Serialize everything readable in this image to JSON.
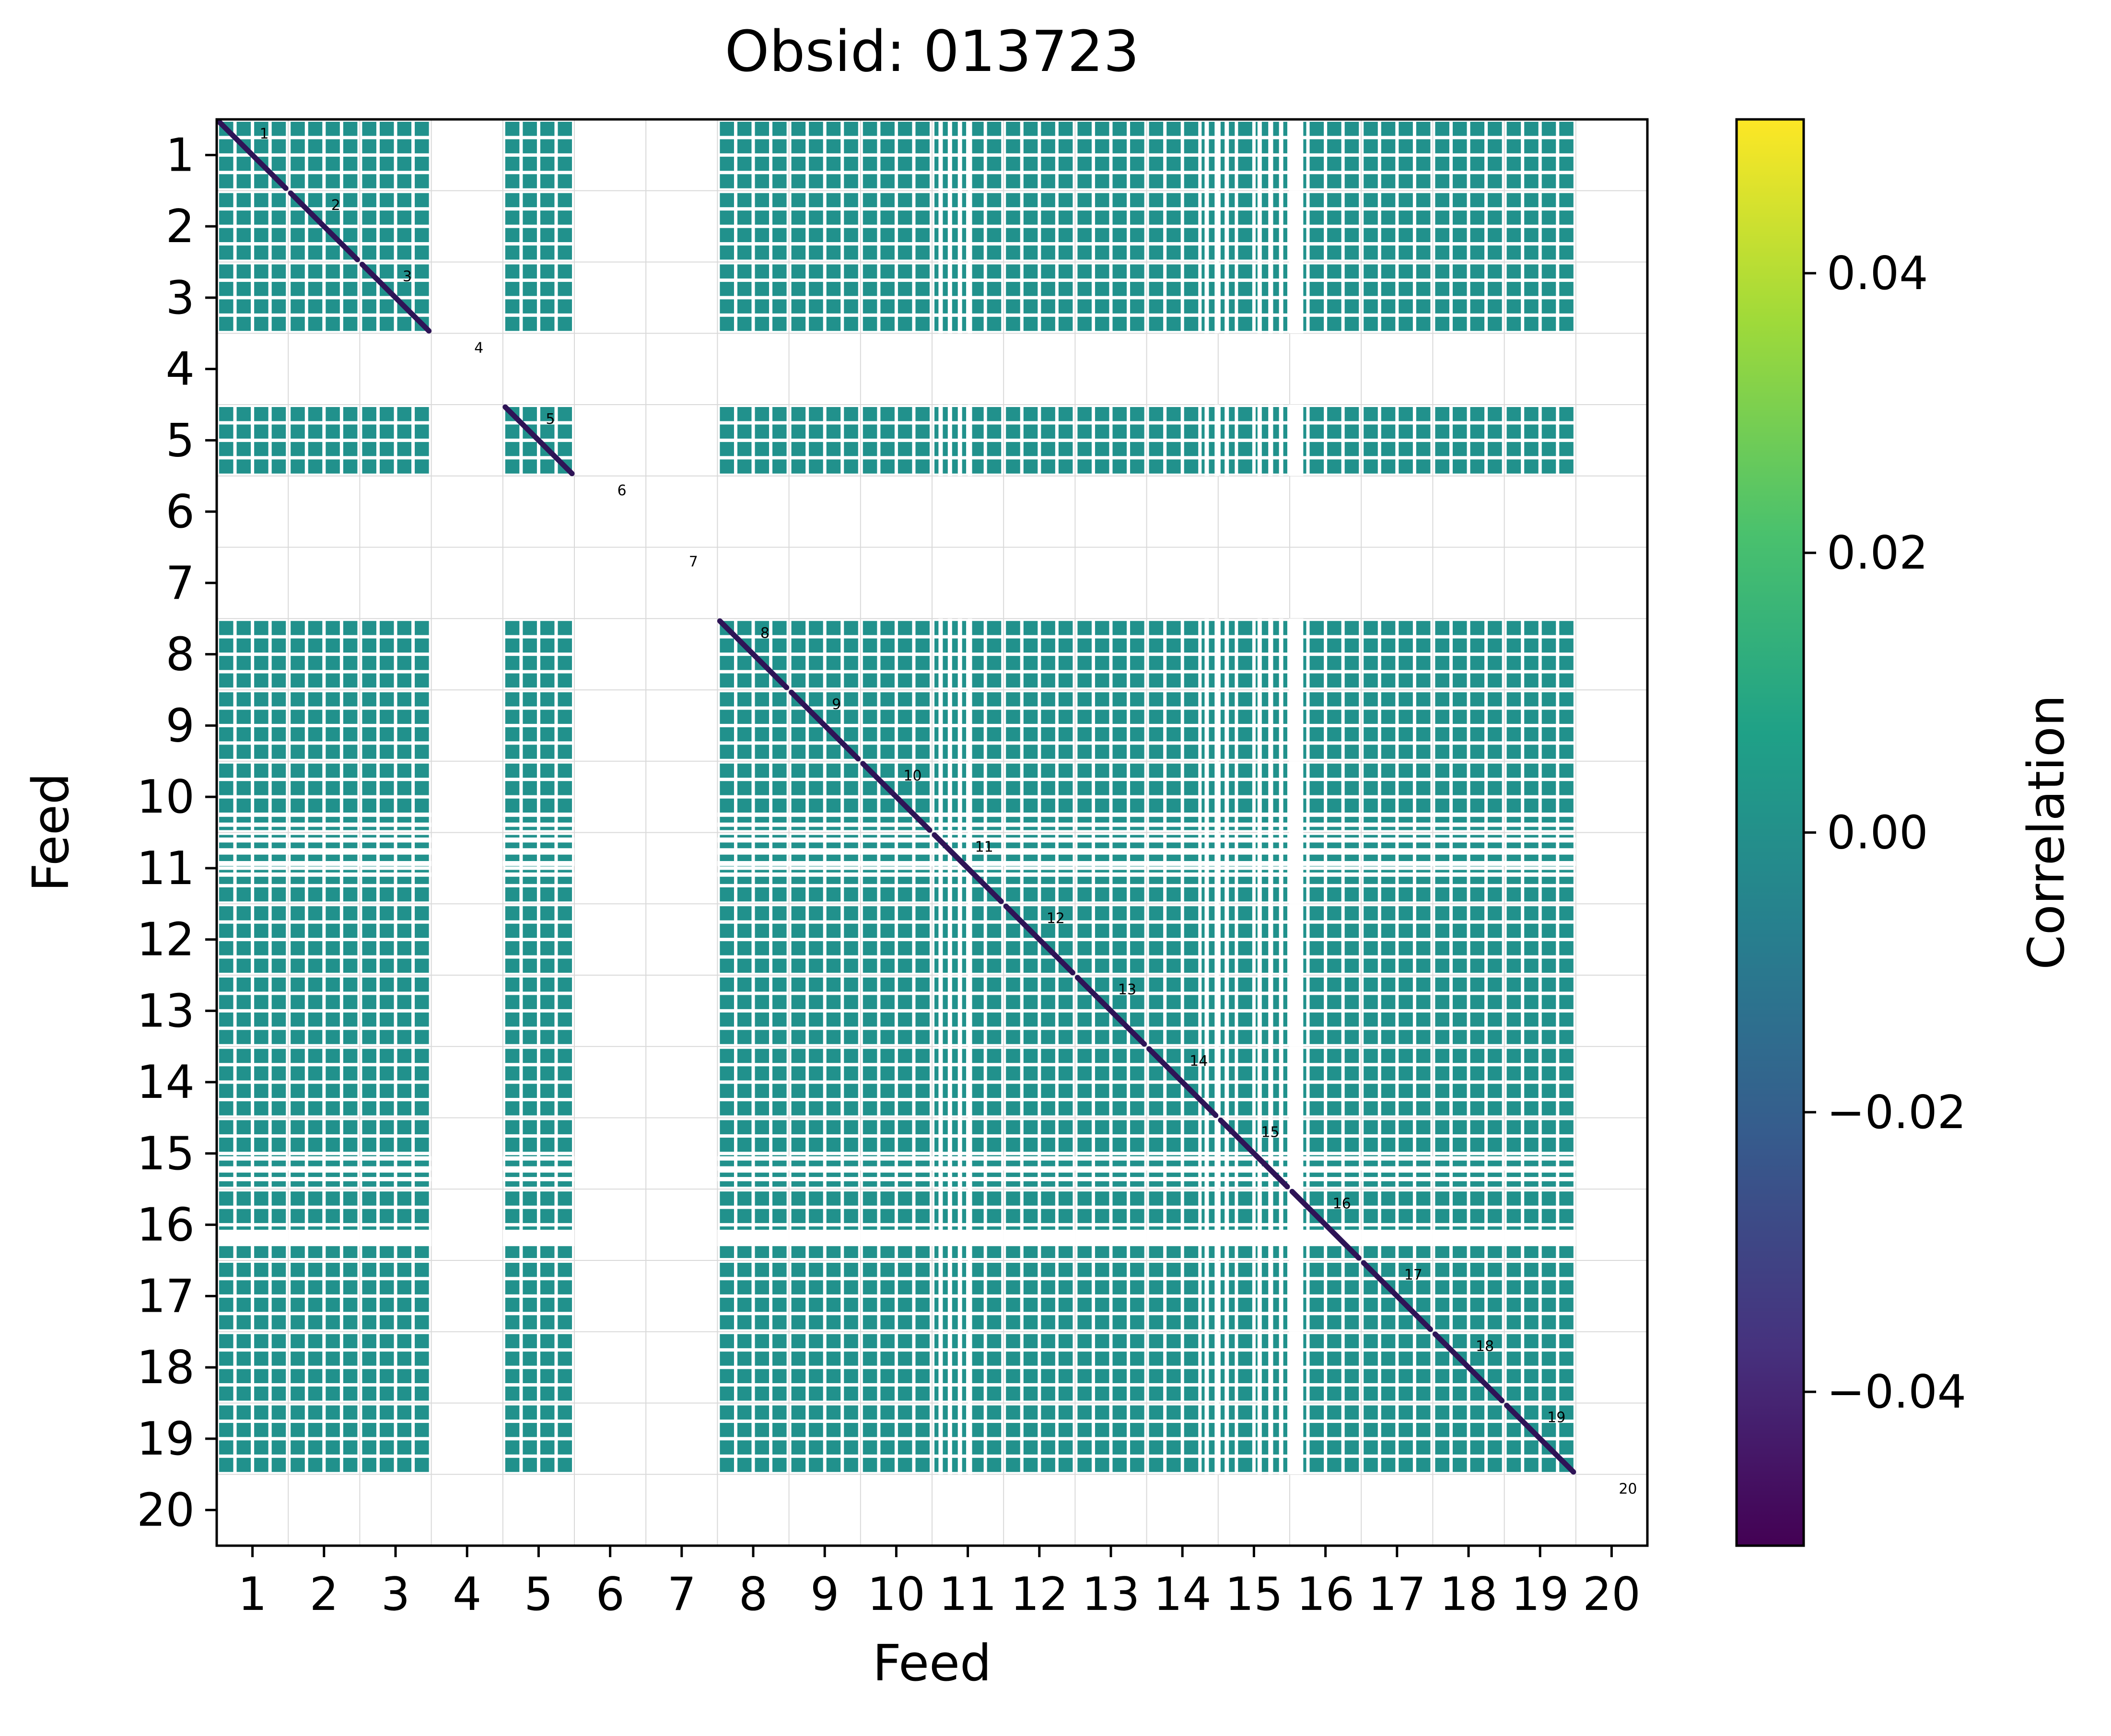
{
  "chart_data": {
    "type": "heatmap",
    "title": "Obsid: 013723",
    "xlabel": "Feed",
    "ylabel": "Feed",
    "feeds": [
      1,
      2,
      3,
      4,
      5,
      6,
      7,
      8,
      9,
      10,
      11,
      12,
      13,
      14,
      15,
      16,
      17,
      18,
      19,
      20
    ],
    "x_tick_labels": [
      "1",
      "2",
      "3",
      "4",
      "5",
      "6",
      "7",
      "8",
      "9",
      "10",
      "11",
      "12",
      "13",
      "14",
      "15",
      "16",
      "17",
      "18",
      "19",
      "20"
    ],
    "y_tick_labels": [
      "1",
      "2",
      "3",
      "4",
      "5",
      "6",
      "7",
      "8",
      "9",
      "10",
      "11",
      "12",
      "13",
      "14",
      "15",
      "16",
      "17",
      "18",
      "19",
      "20"
    ],
    "present_feeds": [
      1,
      2,
      3,
      5,
      8,
      9,
      10,
      11,
      12,
      13,
      14,
      15,
      16,
      17,
      18,
      19
    ],
    "missing_feeds": [
      4,
      6,
      7,
      20
    ],
    "bands_per_feed": 4,
    "off_diagonal_value": 0.0,
    "diagonal_labels": [
      "1",
      "2",
      "3",
      "4",
      "5",
      "6",
      "7",
      "8",
      "9",
      "10",
      "11",
      "12",
      "13",
      "14",
      "15",
      "16",
      "17",
      "18",
      "19",
      "20"
    ],
    "colormap": "viridis",
    "vmin": -0.051,
    "vmax": 0.051,
    "cell_color": "#21918c",
    "diagonal_color": "#2e1457",
    "grid_color": "#d9d9d9",
    "annotation_color": "#1a1f33",
    "colorbar": {
      "label": "Correlation",
      "ticks": [
        {
          "value": 0.04,
          "label": "0.04"
        },
        {
          "value": 0.02,
          "label": "0.02"
        },
        {
          "value": 0.0,
          "label": "0.00"
        },
        {
          "value": -0.02,
          "label": "−0.02"
        },
        {
          "value": -0.04,
          "label": "−0.04"
        }
      ]
    },
    "colormap_stops": [
      {
        "offset": 0.0,
        "color": "#440154"
      },
      {
        "offset": 0.14,
        "color": "#46327e"
      },
      {
        "offset": 0.29,
        "color": "#365c8d"
      },
      {
        "offset": 0.43,
        "color": "#277f8e"
      },
      {
        "offset": 0.57,
        "color": "#1fa187"
      },
      {
        "offset": 0.71,
        "color": "#4ac16d"
      },
      {
        "offset": 0.86,
        "color": "#a0da39"
      },
      {
        "offset": 1.0,
        "color": "#fde725"
      }
    ],
    "masked_stripes_h": [
      [
        9.72,
        9.78
      ],
      [
        9.86,
        9.92
      ],
      [
        10.07,
        10.14
      ],
      [
        10.22,
        10.31
      ],
      [
        10.4,
        10.47
      ],
      [
        10.56,
        10.62
      ],
      [
        14.54,
        14.6
      ],
      [
        14.68,
        14.74
      ],
      [
        14.83,
        14.89
      ],
      [
        15.57,
        15.8
      ]
    ],
    "masked_stripes_v": [
      [
        10.09,
        10.15
      ],
      [
        10.22,
        10.28
      ],
      [
        10.36,
        10.42
      ],
      [
        10.5,
        10.56
      ],
      [
        13.81,
        13.87
      ],
      [
        13.95,
        14.01
      ],
      [
        14.09,
        14.15
      ],
      [
        14.55,
        14.61
      ],
      [
        14.7,
        14.76
      ],
      [
        14.85,
        14.91
      ],
      [
        14.99,
        15.19
      ]
    ]
  }
}
